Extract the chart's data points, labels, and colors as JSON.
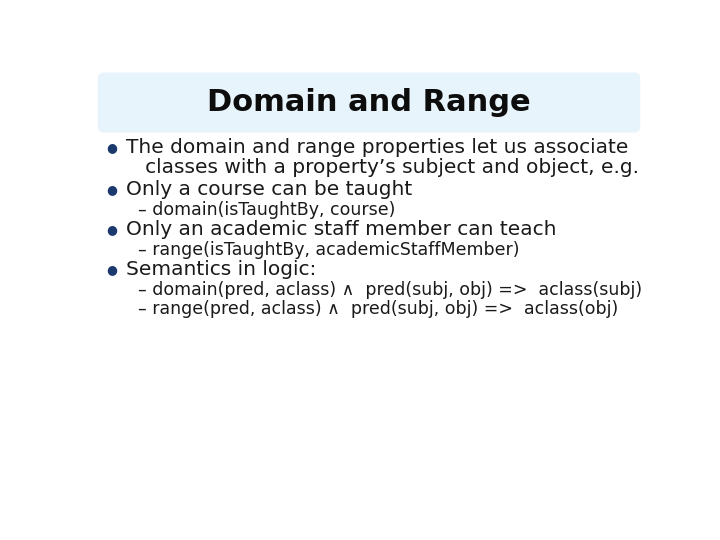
{
  "title": "Domain and Range",
  "title_fontsize": 22,
  "title_fontweight": "bold",
  "title_color": "#0d0d0d",
  "title_bg_color": "#e8f4fb",
  "background_color": "#ffffff",
  "bullet_color": "#1a3a6e",
  "text_color": "#1a1a1a",
  "bullet_fontsize": 14.5,
  "sub_fontsize": 12.5,
  "bullet_points": [
    {
      "type": "bullet",
      "lines": [
        "The domain and range properties let us associate",
        "   classes with a property’s subject and object, e.g."
      ]
    },
    {
      "type": "bullet",
      "lines": [
        "Only a course can be taught"
      ]
    },
    {
      "type": "sub",
      "lines": [
        "– domain(isTaughtBy, course)"
      ]
    },
    {
      "type": "bullet",
      "lines": [
        "Only an academic staff member can teach"
      ]
    },
    {
      "type": "sub",
      "lines": [
        "– range(isTaughtBy, academicStaffMember)"
      ]
    },
    {
      "type": "bullet",
      "lines": [
        "Semantics in logic:"
      ]
    },
    {
      "type": "sub",
      "lines": [
        "– domain(pred, aclass) ∧  pred(subj, obj) =>  aclass(subj)"
      ]
    },
    {
      "type": "sub",
      "lines": [
        "– range(pred, aclass) ∧  pred(subj, obj) =>  aclass(obj)"
      ]
    }
  ]
}
